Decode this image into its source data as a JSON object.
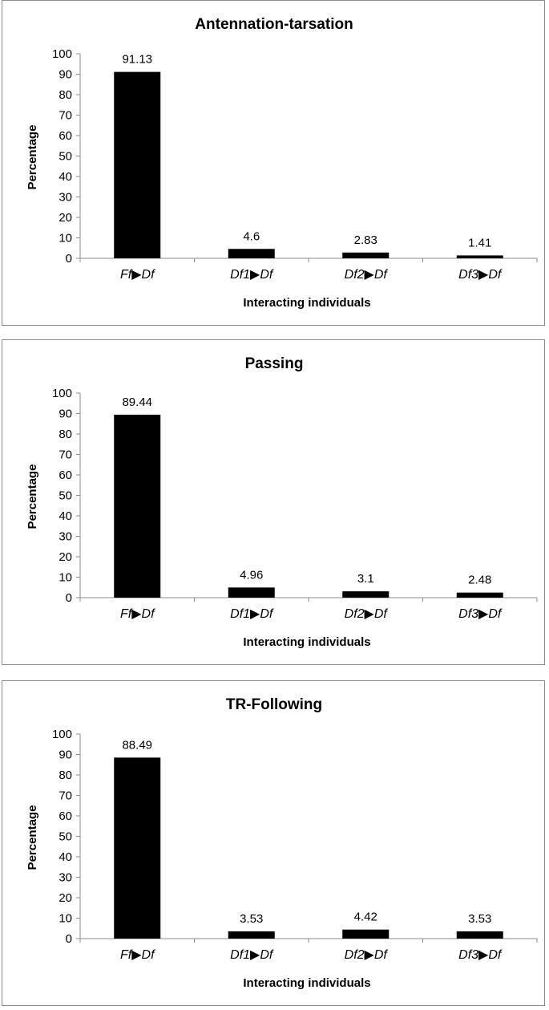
{
  "chart_data": [
    {
      "type": "bar",
      "title": "Antennation-tarsation",
      "xlabel": "Interacting individuals",
      "ylabel": "Percentage",
      "ylim": [
        0,
        100
      ],
      "yticks": [
        "0",
        "10",
        "20",
        "30",
        "40",
        "50",
        "60",
        "70",
        "80",
        "90",
        "100"
      ],
      "categories": [
        "Ff▶Df",
        "Df1▶Df",
        "Df2▶Df",
        "Df3▶Df"
      ],
      "values": [
        91.13,
        4.6,
        2.83,
        1.41
      ],
      "value_labels": [
        "91.13",
        "4.6",
        "2.83",
        "1.41"
      ],
      "bar_color": "#000000",
      "grid": false,
      "legend": "none"
    },
    {
      "type": "bar",
      "title": "Passing",
      "xlabel": "Interacting individuals",
      "ylabel": "Percentage",
      "ylim": [
        0,
        100
      ],
      "yticks": [
        "0",
        "10",
        "20",
        "30",
        "40",
        "50",
        "60",
        "70",
        "80",
        "90",
        "100"
      ],
      "categories": [
        "Ff▶Df",
        "Df1▶Df",
        "Df2▶Df",
        "Df3▶Df"
      ],
      "values": [
        89.44,
        4.96,
        3.1,
        2.48
      ],
      "value_labels": [
        "89.44",
        "4.96",
        "3.1",
        "2.48"
      ],
      "bar_color": "#000000",
      "grid": false,
      "legend": "none"
    },
    {
      "type": "bar",
      "title": "TR-Following",
      "xlabel": "Interacting individuals",
      "ylabel": "Percentage",
      "ylim": [
        0,
        100
      ],
      "yticks": [
        "0",
        "10",
        "20",
        "30",
        "40",
        "50",
        "60",
        "70",
        "80",
        "90",
        "100"
      ],
      "categories": [
        "Ff▶Df",
        "Df1▶Df",
        "Df2▶Df",
        "Df3▶Df"
      ],
      "values": [
        88.49,
        3.53,
        4.42,
        3.53
      ],
      "value_labels": [
        "88.49",
        "3.53",
        "4.42",
        "3.53"
      ],
      "bar_color": "#000000",
      "grid": false,
      "legend": "none"
    }
  ]
}
